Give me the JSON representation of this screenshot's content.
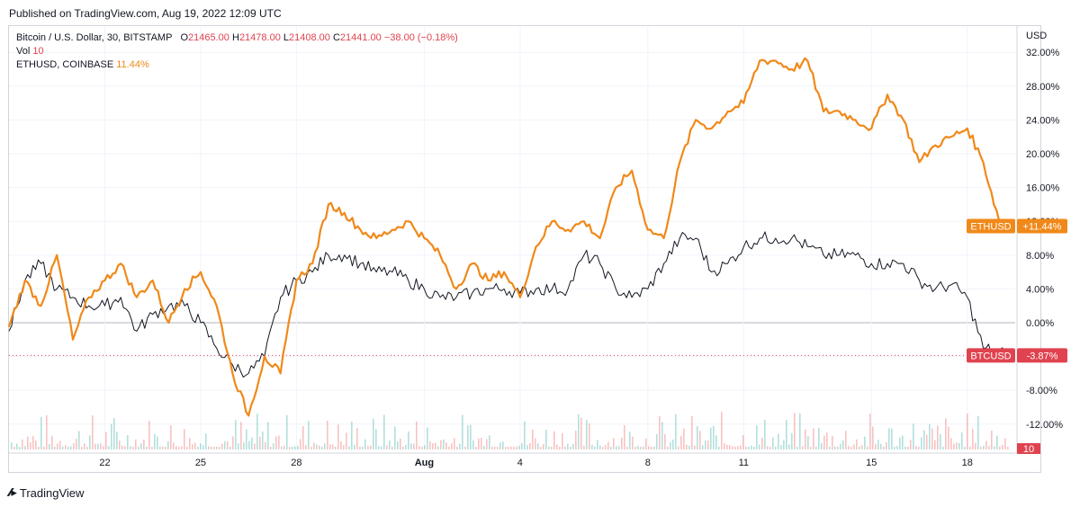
{
  "published": "Published on TradingView.com, Aug 19, 2022 12:09 UTC",
  "legend": {
    "main_symbol": "Bitcoin / U.S. Dollar, 30, BITSTAMP",
    "o_label": "O",
    "o_value": "21465.00",
    "h_label": "H",
    "h_value": "21478.00",
    "l_label": "L",
    "l_value": "21408.00",
    "c_label": "C",
    "c_value": "21441.00",
    "change": "−38.00 (−0.18%)",
    "vol_label": "Vol",
    "vol_value": "10",
    "compare_symbol": "ETHUSD, COINBASE",
    "compare_value": "11.44%"
  },
  "brand": "TradingView",
  "colors": {
    "btc": "#131722",
    "btc_up": "#26a69a",
    "btc_down": "#ef5350",
    "eth": "#f0891a",
    "btc_badge": "#e0434f",
    "grid": "#f0f3fa"
  },
  "chart_data": {
    "type": "line",
    "title": "Bitcoin / U.S. Dollar, 30, BITSTAMP",
    "y_axis_unit": "USD",
    "y_ticks": [
      "32.00%",
      "28.00%",
      "24.00%",
      "20.00%",
      "16.00%",
      "12.00%",
      "8.00%",
      "4.00%",
      "0.00%",
      "-4.00%",
      "-8.00%",
      "-12.00%"
    ],
    "x_tick_labels": [
      "22",
      "25",
      "28",
      "Aug",
      "4",
      "8",
      "11",
      "15",
      "18"
    ],
    "x_tick_days": [
      3,
      6,
      9,
      13,
      16,
      20,
      23,
      27,
      30
    ],
    "x_range_days": [
      0,
      31.5
    ],
    "y_range_pct": [
      -15,
      35
    ],
    "series": [
      {
        "name": "ETHUSD",
        "x": [
          0,
          0.5,
          1,
          1.5,
          2,
          2.5,
          3,
          3.5,
          4,
          4.5,
          5,
          5.5,
          6,
          6.5,
          7,
          7.5,
          8,
          8.5,
          9,
          9.5,
          10,
          10.5,
          11,
          11.5,
          12,
          12.5,
          13,
          13.5,
          14,
          14.5,
          15,
          15.5,
          16,
          16.5,
          17,
          17.5,
          18,
          18.5,
          19,
          19.5,
          20,
          20.5,
          21,
          21.5,
          22,
          22.5,
          23,
          23.5,
          24,
          24.5,
          25,
          25.5,
          26,
          26.5,
          27,
          27.5,
          28,
          28.5,
          29,
          29.5,
          30,
          30.5,
          31,
          31.3
        ],
        "values": [
          -0.5,
          5,
          2,
          8,
          -2,
          3,
          5,
          7,
          3,
          5,
          0,
          4,
          6,
          2,
          -6,
          -11,
          -4,
          -6,
          5,
          7,
          14,
          13,
          11,
          10,
          11,
          12,
          10,
          8,
          4,
          7,
          5,
          6,
          3,
          9,
          12,
          11,
          12,
          10,
          16,
          18,
          11,
          10,
          19,
          24,
          23,
          25,
          26,
          31,
          31,
          30,
          31,
          25,
          25,
          24,
          23,
          27,
          24,
          19,
          21,
          22,
          23,
          19,
          12,
          11.44
        ]
      },
      {
        "name": "BTCUSD",
        "x": [
          0,
          0.5,
          1,
          1.5,
          2,
          2.5,
          3,
          3.5,
          4,
          4.5,
          5,
          5.5,
          6,
          6.5,
          7,
          7.5,
          8,
          8.5,
          9,
          9.5,
          10,
          10.5,
          11,
          11.5,
          12,
          12.5,
          13,
          13.5,
          14,
          14.5,
          15,
          15.5,
          16,
          16.5,
          17,
          17.5,
          18,
          18.5,
          19,
          19.5,
          20,
          20.5,
          21,
          21.5,
          22,
          22.5,
          23,
          23.5,
          24,
          24.5,
          25,
          25.5,
          26,
          26.5,
          27,
          27.5,
          28,
          28.5,
          29,
          29.5,
          30,
          30.5,
          31,
          31.3
        ],
        "values": [
          -1,
          5,
          7,
          4,
          3,
          2,
          2,
          3,
          -1,
          1,
          2,
          2,
          0,
          -3,
          -5,
          -6,
          -4,
          3,
          5,
          6,
          8,
          8,
          7,
          6,
          6,
          5,
          4,
          3,
          3,
          3.5,
          4,
          4,
          3.5,
          4,
          4,
          4,
          8,
          7,
          4,
          3,
          4,
          7,
          10,
          10,
          6,
          7,
          9,
          10,
          10,
          10,
          9,
          8,
          8,
          8,
          7,
          7,
          7,
          5,
          4,
          4.5,
          3,
          -3,
          -3.5,
          -3.87
        ]
      }
    ],
    "badges": [
      {
        "name": "ETHUSD",
        "label": "ETHUSD",
        "value": "+11.44%",
        "at": 11.44,
        "color": "#f0891a"
      },
      {
        "name": "BTCUSD",
        "label": "BTCUSD",
        "value": "-3.87%",
        "at": -3.87,
        "color": "#e0434f"
      }
    ],
    "volume_badge": "10",
    "grid": true
  }
}
